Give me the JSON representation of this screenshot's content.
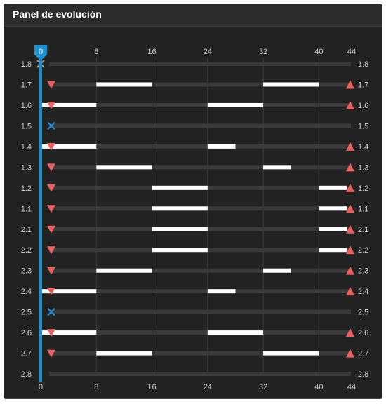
{
  "panel": {
    "title": "Panel de evolución"
  },
  "timeline": {
    "x_ticks": [
      0,
      8,
      16,
      24,
      32,
      40,
      44
    ],
    "max": 44,
    "cursor": {
      "value": 0,
      "label": "0"
    }
  },
  "colors": {
    "background": "#222222",
    "header": "#2c2c2c",
    "track": "#3a3a3a",
    "segment": "#ffffff",
    "cursor": "#1e8fd0",
    "marker": "#e86060",
    "x_marker": "#1e8fd0"
  },
  "rows": [
    {
      "label": "1.8",
      "start_icon": "gray-x-icon",
      "end_icon": "none",
      "segments": []
    },
    {
      "label": "1.7",
      "start_icon": "triangle-down-icon",
      "end_icon": "triangle-up-icon",
      "segments": [
        [
          8,
          16
        ],
        [
          32,
          40
        ]
      ]
    },
    {
      "label": "1.6",
      "start_icon": "triangle-down-icon",
      "end_icon": "triangle-up-icon",
      "segments": [
        [
          0,
          8
        ],
        [
          24,
          32
        ]
      ]
    },
    {
      "label": "1.5",
      "start_icon": "blue-x-icon",
      "end_icon": "none",
      "segments": []
    },
    {
      "label": "1.4",
      "start_icon": "triangle-down-icon",
      "end_icon": "triangle-up-icon",
      "segments": [
        [
          0,
          8
        ],
        [
          24,
          28
        ]
      ]
    },
    {
      "label": "1.3",
      "start_icon": "triangle-down-icon",
      "end_icon": "triangle-up-icon",
      "segments": [
        [
          8,
          16
        ],
        [
          32,
          36
        ]
      ]
    },
    {
      "label": "1.2",
      "start_icon": "triangle-down-icon",
      "end_icon": "triangle-up-icon",
      "segments": [
        [
          16,
          24
        ],
        [
          40,
          44
        ]
      ]
    },
    {
      "label": "1.1",
      "start_icon": "triangle-down-icon",
      "end_icon": "triangle-up-icon",
      "segments": [
        [
          16,
          24
        ],
        [
          40,
          44
        ]
      ]
    },
    {
      "label": "2.1",
      "start_icon": "triangle-down-icon",
      "end_icon": "triangle-up-icon",
      "segments": [
        [
          16,
          24
        ],
        [
          40,
          44
        ]
      ]
    },
    {
      "label": "2.2",
      "start_icon": "triangle-down-icon",
      "end_icon": "triangle-up-icon",
      "segments": [
        [
          16,
          24
        ],
        [
          40,
          44
        ]
      ]
    },
    {
      "label": "2.3",
      "start_icon": "triangle-down-icon",
      "end_icon": "triangle-up-icon",
      "segments": [
        [
          8,
          16
        ],
        [
          32,
          36
        ]
      ]
    },
    {
      "label": "2.4",
      "start_icon": "triangle-down-icon",
      "end_icon": "triangle-up-icon",
      "segments": [
        [
          0,
          8
        ],
        [
          24,
          28
        ]
      ]
    },
    {
      "label": "2.5",
      "start_icon": "blue-x-icon",
      "end_icon": "none",
      "segments": []
    },
    {
      "label": "2.6",
      "start_icon": "triangle-down-icon",
      "end_icon": "triangle-up-icon",
      "segments": [
        [
          0,
          8
        ],
        [
          24,
          32
        ]
      ]
    },
    {
      "label": "2.7",
      "start_icon": "triangle-down-icon",
      "end_icon": "triangle-up-icon",
      "segments": [
        [
          8,
          16
        ],
        [
          32,
          40
        ]
      ]
    },
    {
      "label": "2.8",
      "start_icon": "none",
      "end_icon": "none",
      "segments": []
    }
  ]
}
